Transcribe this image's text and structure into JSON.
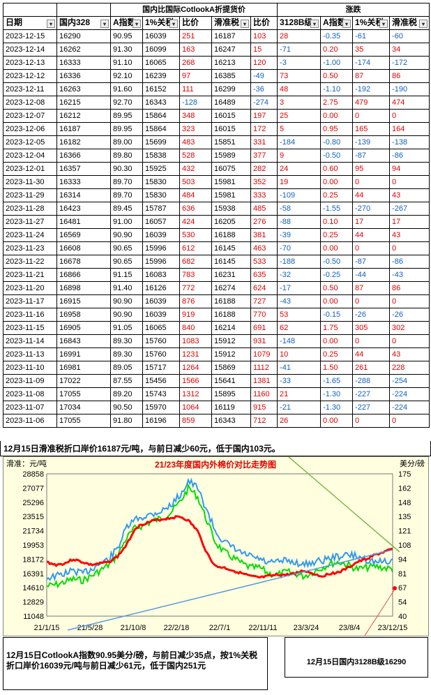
{
  "table": {
    "group_header_main": "国内比国际CotlookA折提货价",
    "group_header_change": "涨跌",
    "columns": [
      "日期",
      "国内328",
      "A指数",
      "1%关税",
      "比价",
      "滑准税",
      "比价",
      "3128B级",
      "A指数",
      "1%关税",
      "滑准税"
    ],
    "rows": [
      [
        "2023-12-15",
        "16290",
        "90.95",
        "16039",
        "251",
        "16187",
        "103",
        "28",
        "-0.35",
        "-61",
        "-60"
      ],
      [
        "2023-12-14",
        "16262",
        "91.30",
        "16099",
        "163",
        "16247",
        "15",
        "-71",
        "0.20",
        "35",
        "34"
      ],
      [
        "2023-12-13",
        "16333",
        "91.10",
        "16065",
        "268",
        "16213",
        "120",
        "-3",
        "-1.00",
        "-174",
        "-172"
      ],
      [
        "2023-12-12",
        "16336",
        "92.10",
        "16239",
        "97",
        "16385",
        "-49",
        "73",
        "0.50",
        "87",
        "86"
      ],
      [
        "2023-12-11",
        "16263",
        "91.60",
        "16152",
        "111",
        "16299",
        "-36",
        "48",
        "-1.10",
        "-192",
        "-190"
      ],
      [
        "2023-12-08",
        "16215",
        "92.70",
        "16343",
        "-128",
        "16489",
        "-274",
        "3",
        "2.75",
        "479",
        "474"
      ],
      [
        "2023-12-07",
        "16212",
        "89.95",
        "15864",
        "348",
        "16015",
        "197",
        "25",
        "0.00",
        "0",
        "0"
      ],
      [
        "2023-12-06",
        "16187",
        "89.95",
        "15864",
        "323",
        "16015",
        "172",
        "5",
        "0.95",
        "165",
        "164"
      ],
      [
        "2023-12-05",
        "16182",
        "89.00",
        "15699",
        "483",
        "15851",
        "331",
        "-184",
        "-0.80",
        "-139",
        "-138"
      ],
      [
        "2023-12-04",
        "16366",
        "89.80",
        "15838",
        "528",
        "15989",
        "377",
        "9",
        "-0.50",
        "-87",
        "-86"
      ],
      [
        "2023-12-01",
        "16357",
        "90.30",
        "15925",
        "432",
        "16075",
        "282",
        "24",
        "0.60",
        "95",
        "94"
      ],
      [
        "2023-11-30",
        "16333",
        "89.70",
        "15830",
        "503",
        "15981",
        "352",
        "19",
        "0.00",
        "0",
        "0"
      ],
      [
        "2023-11-29",
        "16314",
        "89.70",
        "15830",
        "484",
        "15981",
        "333",
        "-109",
        "0.25",
        "44",
        "43"
      ],
      [
        "2023-11-28",
        "16423",
        "89.45",
        "15787",
        "636",
        "15938",
        "485",
        "-58",
        "-1.55",
        "-270",
        "-267"
      ],
      [
        "2023-11-27",
        "16481",
        "91.00",
        "16057",
        "424",
        "16205",
        "276",
        "-88",
        "0.10",
        "17",
        "17"
      ],
      [
        "2023-11-24",
        "16569",
        "90.90",
        "16039",
        "530",
        "16188",
        "381",
        "-39",
        "0.25",
        "44",
        "43"
      ],
      [
        "2023-11-23",
        "16608",
        "90.65",
        "15996",
        "612",
        "16145",
        "463",
        "-70",
        "0.00",
        "0",
        "0"
      ],
      [
        "2023-11-22",
        "16678",
        "90.65",
        "15996",
        "682",
        "16145",
        "533",
        "-188",
        "-0.50",
        "-87",
        "-86"
      ],
      [
        "2023-11-21",
        "16866",
        "91.15",
        "16083",
        "783",
        "16231",
        "635",
        "-32",
        "-0.25",
        "-44",
        "-43"
      ],
      [
        "2023-11-20",
        "16898",
        "91.40",
        "16126",
        "772",
        "16274",
        "624",
        "-17",
        "0.50",
        "87",
        "86"
      ],
      [
        "2023-11-17",
        "16915",
        "90.90",
        "16039",
        "876",
        "16188",
        "727",
        "-43",
        "0.00",
        "0",
        "0"
      ],
      [
        "2023-11-16",
        "16958",
        "90.90",
        "16039",
        "919",
        "16188",
        "770",
        "53",
        "-0.15",
        "-26",
        "-26"
      ],
      [
        "2023-11-15",
        "16905",
        "91.05",
        "16065",
        "840",
        "16214",
        "691",
        "62",
        "1.75",
        "305",
        "302"
      ],
      [
        "2023-11-14",
        "16843",
        "89.30",
        "15760",
        "1083",
        "15912",
        "931",
        "-148",
        "0.00",
        "0",
        "0"
      ],
      [
        "2023-11-13",
        "16991",
        "89.30",
        "15760",
        "1231",
        "15912",
        "1079",
        "10",
        "0.25",
        "44",
        "43"
      ],
      [
        "2023-11-10",
        "16981",
        "89.05",
        "15717",
        "1264",
        "15869",
        "1112",
        "-41",
        "1.50",
        "261",
        "228"
      ],
      [
        "2023-11-09",
        "17022",
        "87.55",
        "15456",
        "1566",
        "15641",
        "1381",
        "-33",
        "-1.65",
        "-288",
        "-254"
      ],
      [
        "2023-11-08",
        "17055",
        "89.20",
        "15743",
        "1312",
        "15895",
        "1160",
        "21",
        "-1.30",
        "-227",
        "-224"
      ],
      [
        "2023-11-07",
        "17034",
        "90.50",
        "15970",
        "1064",
        "16119",
        "915",
        "-21",
        "-1.30",
        "-227",
        "-224"
      ],
      [
        "2023-11-06",
        "17055",
        "91.80",
        "16196",
        "859",
        "16343",
        "712",
        "26",
        "0.00",
        "0",
        "0"
      ]
    ]
  },
  "notes": {
    "slide_tax": "12月15日滑准税折口岸价16187元/吨，与前日减少60元，低于国内103元。",
    "index_note": "12月15日CotlookA指数90.95美分/磅，与前日减少35点，按1%关税折口岸价16039元/吨与前日减少61元，低于国内251元",
    "domestic_note": "12月15日国内3128B级16290"
  },
  "chart_data": {
    "type": "line",
    "title": "21/23年度国内外棉价对比走势图",
    "left_axis_label": "滑准：元/吨",
    "right_axis_label": "美分/磅",
    "left_ticks": [
      "28858",
      "27077",
      "25296",
      "23515",
      "21734",
      "19953",
      "18172",
      "16391",
      "14610",
      "12829",
      "11048"
    ],
    "right_ticks": [
      "175",
      "162",
      "148",
      "135",
      "121",
      "108",
      "94",
      "81",
      "67",
      "54",
      "40"
    ],
    "x_ticks": [
      "21/1/15",
      "21/5/28",
      "21/10/8",
      "22/2/18",
      "22/7/1",
      "22/11/11",
      "23/3/24",
      "23/8/4",
      "23/12/15"
    ],
    "ylim_left": [
      11048,
      28858
    ],
    "series": [],
    "colors": {
      "domestic": "#ff0000",
      "a_index": "#3399ee",
      "tariff": "#00dd00",
      "trend": "#5599dd",
      "trend2": "#77bb44"
    }
  }
}
